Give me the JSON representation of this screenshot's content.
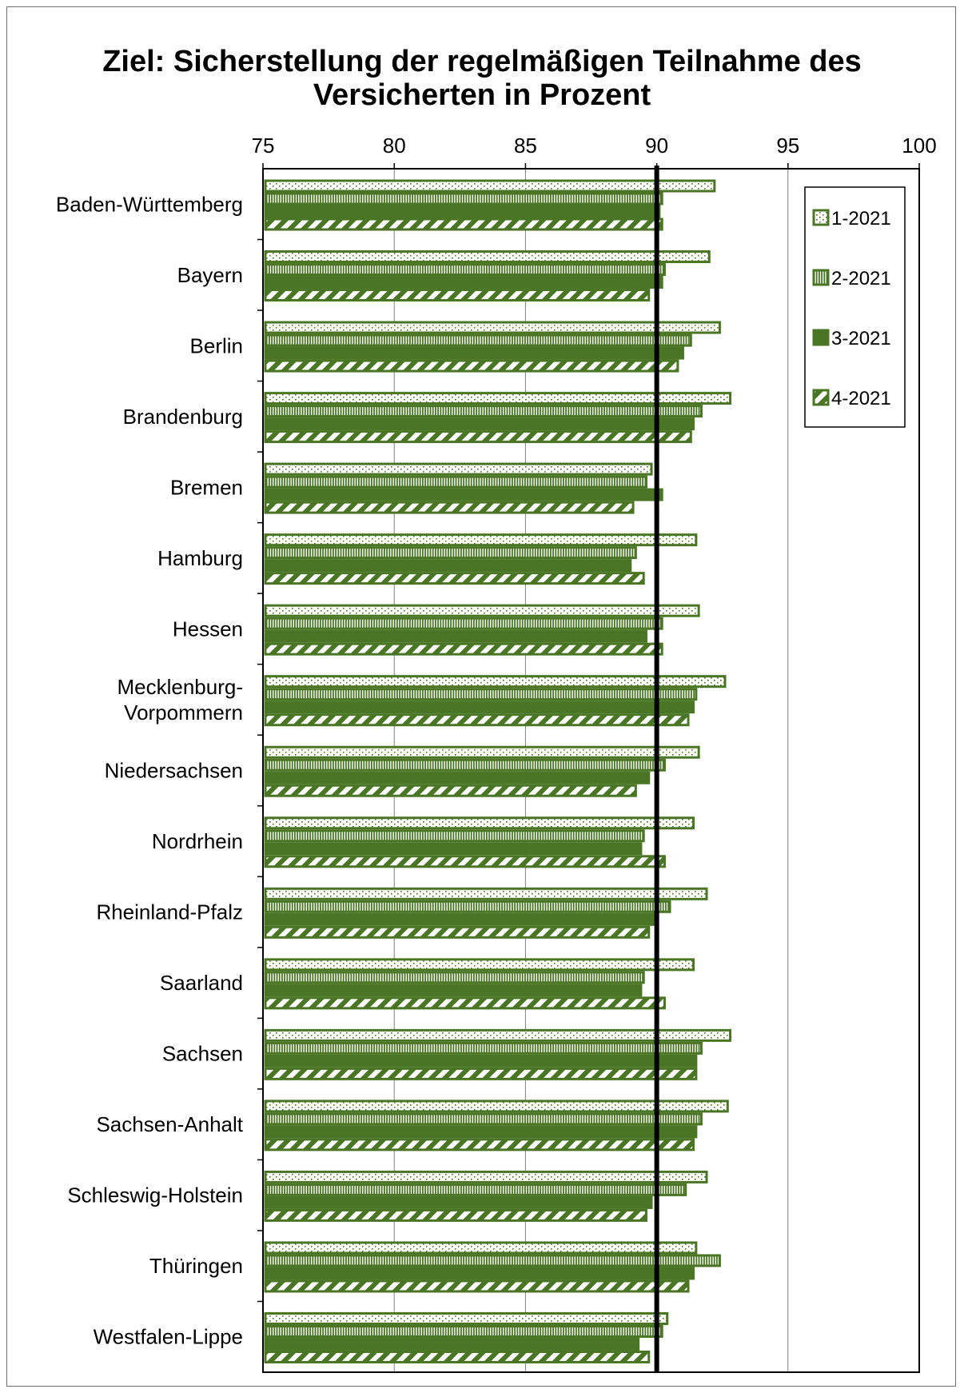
{
  "chart_data": {
    "type": "bar",
    "orientation": "horizontal",
    "title_lines": [
      "Ziel: Sicherstellung der regelmäßigen Teilnahme des",
      "Versicherten in Prozent"
    ],
    "xlim": [
      75,
      100
    ],
    "xticks": [
      "75",
      "80",
      "85",
      "90",
      "95",
      "100"
    ],
    "reference_line": 90,
    "grid": "vertical",
    "legend_position": "top-right",
    "colors": {
      "bar": "#4a7524",
      "reference": "#000000",
      "grid": "#808080"
    },
    "categories": [
      [
        "Baden-Württemberg"
      ],
      [
        "Bayern"
      ],
      [
        "Berlin"
      ],
      [
        "Brandenburg"
      ],
      [
        "Bremen"
      ],
      [
        "Hamburg"
      ],
      [
        "Hessen"
      ],
      [
        "Mecklenburg-",
        "Vorpommern"
      ],
      [
        "Niedersachsen"
      ],
      [
        "Nordrhein"
      ],
      [
        "Rheinland-Pfalz"
      ],
      [
        "Saarland"
      ],
      [
        "Sachsen"
      ],
      [
        "Sachsen-Anhalt"
      ],
      [
        "Schleswig-Holstein"
      ],
      [
        "Thüringen"
      ],
      [
        "Westfalen-Lippe"
      ]
    ],
    "series": [
      {
        "name": "1-2021",
        "pattern": "dots",
        "values": [
          92.2,
          92.0,
          92.4,
          92.8,
          89.8,
          91.5,
          91.6,
          92.6,
          91.6,
          91.4,
          91.9,
          91.4,
          92.8,
          92.7,
          91.9,
          91.5,
          90.4
        ]
      },
      {
        "name": "2-2021",
        "pattern": "vertical",
        "values": [
          90.2,
          90.3,
          91.3,
          91.7,
          89.6,
          89.2,
          90.2,
          91.5,
          90.3,
          89.5,
          90.5,
          89.5,
          91.7,
          91.7,
          91.1,
          92.4,
          90.2
        ]
      },
      {
        "name": "3-2021",
        "pattern": "solid",
        "values": [
          90.1,
          90.2,
          91.0,
          91.4,
          90.2,
          89.0,
          89.6,
          91.4,
          89.7,
          89.4,
          90.0,
          89.4,
          91.5,
          91.5,
          89.8,
          91.4,
          89.3
        ]
      },
      {
        "name": "4-2021",
        "pattern": "diagonal",
        "values": [
          90.2,
          89.7,
          90.8,
          91.3,
          89.1,
          89.5,
          90.2,
          91.2,
          89.2,
          90.3,
          89.7,
          90.3,
          91.5,
          91.4,
          89.6,
          91.2,
          89.7
        ]
      }
    ]
  }
}
